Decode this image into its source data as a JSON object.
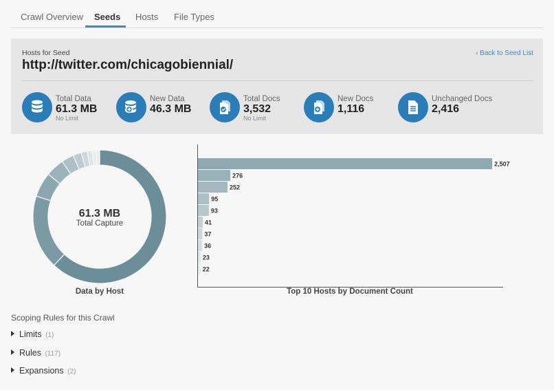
{
  "tabs": [
    {
      "label": "Crawl Overview"
    },
    {
      "label": "Seeds"
    },
    {
      "label": "Hosts"
    },
    {
      "label": "File Types"
    }
  ],
  "active_tab": "Seeds",
  "header": {
    "subtitle": "Hosts for Seed",
    "title": "http://twitter.com/chicagobiennial/",
    "back_link": "‹ Back to Seed List"
  },
  "stats": [
    {
      "label": "Total Data",
      "value": "61.3 MB",
      "note": "No Limit",
      "icon": "database-icon"
    },
    {
      "label": "New Data",
      "value": "46.3 MB",
      "note": "",
      "icon": "database-add-icon"
    },
    {
      "label": "Total Docs",
      "value": "3,532",
      "note": "No Limit",
      "icon": "documents-check-icon"
    },
    {
      "label": "New Docs",
      "value": "1,116",
      "note": "",
      "icon": "document-add-icon"
    },
    {
      "label": "Unchanged Docs",
      "value": "2,416",
      "note": "",
      "icon": "document-icon"
    }
  ],
  "donut": {
    "center_value": "61.3 MB",
    "center_label": "Total Capture",
    "caption": "Data by Host",
    "color": "#6b8e99"
  },
  "bar_caption": "Top 10 Hosts by Document Count",
  "chart_data": [
    {
      "type": "pie",
      "title": "Data by Host",
      "values": [
        62.0,
        18.0,
        6.0,
        4.5,
        3.0,
        2.0,
        1.5,
        1.2,
        1.0,
        0.8
      ]
    },
    {
      "type": "bar",
      "title": "Top 10 Hosts by Document Count",
      "orientation": "horizontal",
      "values": [
        2507,
        276,
        252,
        95,
        93,
        41,
        37,
        36,
        23,
        22
      ],
      "value_labels": [
        "2,507",
        "276",
        "252",
        "95",
        "93",
        "41",
        "37",
        "36",
        "23",
        "22"
      ],
      "xlim": [
        0,
        2600
      ]
    }
  ],
  "scoping": {
    "title": "Scoping Rules for this Crawl",
    "items": [
      {
        "label": "Limits",
        "count": "(1)"
      },
      {
        "label": "Rules",
        "count": "(117)"
      },
      {
        "label": "Expansions",
        "count": "(2)"
      }
    ]
  },
  "colors": {
    "accent": "#2b7db8",
    "donut_base": "#6b8e99",
    "bar_base": "#8fa9b1"
  }
}
